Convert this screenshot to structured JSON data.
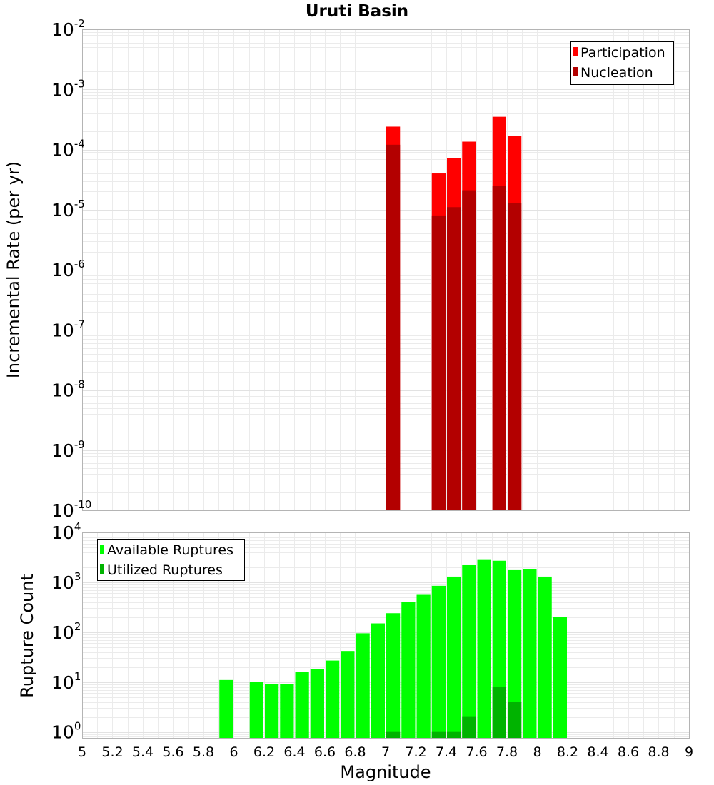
{
  "title": "Uruti Basin",
  "colors": {
    "participation": "#ff0000",
    "nucleation": "#b30000",
    "available": "#00ff00",
    "utilized": "#00b300"
  },
  "chart_data": [
    {
      "type": "bar",
      "title": "Uruti Basin",
      "xlabel": "Magnitude",
      "ylabel": "Incremental Rate (per yr)",
      "yscale": "log",
      "xlim": [
        5,
        9
      ],
      "ylim": [
        1e-10,
        0.01
      ],
      "bin_width": 0.1,
      "grid": true,
      "legend_position": "top-right",
      "ytick_exponents": [
        "-2",
        "-3",
        "-4",
        "-5",
        "-6",
        "-7",
        "-8",
        "-9",
        "-10"
      ],
      "series": [
        {
          "name": "Participation",
          "x": [
            7.05,
            7.35,
            7.45,
            7.55,
            7.75,
            7.85
          ],
          "values": [
            0.00024,
            4e-05,
            7.2e-05,
            0.000135,
            0.00035,
            0.00017
          ]
        },
        {
          "name": "Nucleation",
          "x": [
            7.05,
            7.35,
            7.45,
            7.55,
            7.75,
            7.85
          ],
          "values": [
            0.00012,
            8e-06,
            1.1e-05,
            2.1e-05,
            2.5e-05,
            1.3e-05
          ]
        }
      ]
    },
    {
      "type": "bar",
      "xlabel": "Magnitude",
      "ylabel": "Rupture Count",
      "yscale": "log",
      "xlim": [
        5,
        9
      ],
      "ylim": [
        0.76,
        10000
      ],
      "bin_width": 0.1,
      "grid": true,
      "legend_position": "top-left",
      "xticks": [
        "5",
        "5.2",
        "5.4",
        "5.6",
        "5.8",
        "6",
        "6.2",
        "6.4",
        "6.6",
        "6.8",
        "7",
        "7.2",
        "7.4",
        "7.6",
        "7.8",
        "8",
        "8.2",
        "8.4",
        "8.6",
        "8.8",
        "9"
      ],
      "ytick_exponents": [
        "4",
        "3",
        "2",
        "1",
        "0"
      ],
      "series": [
        {
          "name": "Available Ruptures",
          "x": [
            5.95,
            6.15,
            6.25,
            6.35,
            6.45,
            6.55,
            6.65,
            6.75,
            6.85,
            6.95,
            7.05,
            7.15,
            7.25,
            7.35,
            7.45,
            7.55,
            7.65,
            7.75,
            7.85,
            7.95,
            8.05,
            8.15
          ],
          "values": [
            11,
            10,
            9,
            9,
            16,
            18,
            27,
            42,
            95,
            150,
            240,
            400,
            560,
            850,
            1300,
            2200,
            2800,
            2700,
            1750,
            1850,
            1300,
            200
          ]
        },
        {
          "name": "Utilized Ruptures",
          "x": [
            7.05,
            7.35,
            7.45,
            7.55,
            7.75,
            7.85
          ],
          "values": [
            1,
            1,
            1,
            2,
            8,
            4
          ]
        }
      ]
    }
  ]
}
